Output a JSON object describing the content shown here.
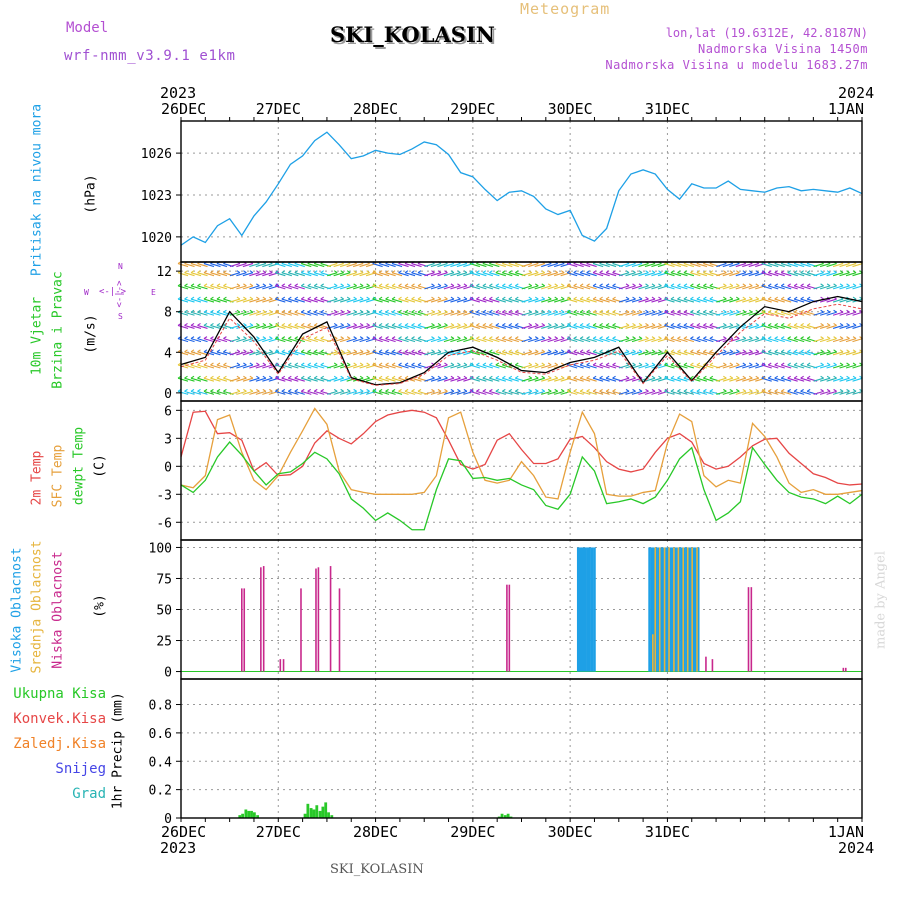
{
  "header": {
    "model_label": "Model",
    "model_value": "wrf-nmm_v3.9.1  e1km",
    "title": "SKI_KOLASIN",
    "meteogram_label": "Meteogram",
    "lonlat": "lon,lat (19.6312E, 42.8187N)",
    "elevation": "Nadmorska Visina 1450m",
    "model_elevation": "Nadmorska Visina u modelu 1683.27m",
    "year_left": "2023",
    "year_right": "2024",
    "footer_title": "SKI_KOLASIN",
    "credit": "made by Angel"
  },
  "colors": {
    "pressure": "#1ea0e6",
    "temp2m": "#e64646",
    "sfc": "#e6a03c",
    "dewpt": "#28c828",
    "high_cloud": "#1ea0e6",
    "mid_cloud": "#e6b43c",
    "low_cloud": "#c8288c",
    "rain": "#28c828",
    "conv": "#e64646",
    "freez": "#f08228",
    "snow": "#4646e6",
    "hail": "#28b4b4",
    "wind_axis": "#a028c8"
  },
  "chart_data": [
    {
      "type": "line",
      "panel": "pressure",
      "ylabel": "Pritisak na nivou mora",
      "unit": "(hPa)",
      "yticks": [
        "1020",
        "1023",
        "1026"
      ],
      "ylim": [
        1018.2,
        1028.3
      ],
      "x_hours": [
        0,
        3,
        6,
        9,
        12,
        15,
        18,
        21,
        24,
        27,
        30,
        33,
        36,
        39,
        42,
        45,
        48,
        51,
        54,
        57,
        60,
        63,
        66,
        69,
        72,
        75,
        78,
        81,
        84,
        87,
        90,
        93,
        96,
        99,
        102,
        105,
        108,
        111,
        114,
        117,
        120,
        123,
        126,
        129,
        132,
        135,
        138,
        141,
        144,
        147,
        150,
        153,
        156,
        159,
        162,
        165,
        168
      ],
      "values": [
        1019.4,
        1020.0,
        1019.6,
        1020.8,
        1021.3,
        1020.1,
        1021.5,
        1022.5,
        1023.8,
        1025.2,
        1025.8,
        1026.9,
        1027.5,
        1026.6,
        1025.6,
        1025.8,
        1026.2,
        1026.0,
        1025.9,
        1026.3,
        1026.8,
        1026.6,
        1025.9,
        1024.6,
        1024.3,
        1023.4,
        1022.6,
        1023.2,
        1023.3,
        1022.9,
        1022.0,
        1021.6,
        1021.9,
        1020.1,
        1019.7,
        1020.6,
        1023.3,
        1024.5,
        1024.8,
        1024.5,
        1023.4,
        1022.7,
        1023.8,
        1023.5,
        1023.5,
        1024.0,
        1023.4,
        1023.3,
        1023.2,
        1023.5,
        1023.6,
        1023.3,
        1023.4,
        1023.3,
        1023.2,
        1023.5,
        1023.1
      ]
    },
    {
      "type": "line",
      "panel": "wind",
      "ylabel_1": "10m Vjetar",
      "ylabel_2": "Brzina i Pravac",
      "unit": "(m/s)",
      "yticks": [
        "0",
        "4",
        "8",
        "12"
      ],
      "ylim": [
        -0.8,
        12.9
      ],
      "compass": {
        "n": "N",
        "s": "S",
        "w": "W",
        "e": "E",
        "lines": "<-|->"
      },
      "x_hours": [
        0,
        6,
        12,
        18,
        24,
        30,
        36,
        42,
        48,
        54,
        60,
        66,
        72,
        78,
        84,
        90,
        96,
        102,
        108,
        114,
        120,
        126,
        132,
        138,
        144,
        150,
        156,
        162,
        168
      ],
      "values": [
        2.8,
        3.5,
        8.0,
        5.5,
        2.0,
        5.8,
        7.0,
        1.5,
        0.8,
        1.0,
        2.0,
        4.0,
        4.5,
        3.5,
        2.2,
        2.0,
        3.0,
        3.5,
        4.5,
        1.0,
        4.0,
        1.2,
        4.0,
        6.5,
        8.5,
        8.0,
        9.0,
        9.5,
        9.0
      ]
    },
    {
      "type": "line",
      "panel": "temperature",
      "ylabel_1": "2m Temp",
      "ylabel_2": "SFC Temp",
      "ylabel_3": "dewpt Temp",
      "unit": "(C)",
      "yticks": [
        "-6",
        "-3",
        "0",
        "3",
        "6"
      ],
      "ylim": [
        -7.9,
        7.0
      ],
      "x_hours": [
        0,
        3,
        6,
        9,
        12,
        15,
        18,
        21,
        24,
        27,
        30,
        33,
        36,
        39,
        42,
        45,
        48,
        51,
        54,
        57,
        60,
        63,
        66,
        69,
        72,
        75,
        78,
        81,
        84,
        87,
        90,
        93,
        96,
        99,
        102,
        105,
        108,
        111,
        114,
        117,
        120,
        123,
        126,
        129,
        132,
        135,
        138,
        141,
        144,
        147,
        150,
        153,
        156,
        159,
        162,
        165,
        168
      ],
      "series": [
        {
          "name": "2m Temp",
          "values": [
            1.0,
            5.8,
            5.9,
            3.5,
            3.6,
            2.8,
            -0.5,
            0.4,
            -1.0,
            -0.9,
            0.0,
            2.5,
            3.8,
            3.0,
            2.4,
            3.5,
            4.8,
            5.5,
            5.8,
            6.0,
            5.8,
            5.2,
            2.8,
            0.2,
            -0.3,
            0.2,
            2.8,
            3.5,
            1.8,
            0.3,
            0.3,
            0.8,
            2.9,
            3.2,
            2.0,
            0.5,
            -0.3,
            -0.6,
            -0.3,
            1.5,
            3.0,
            3.5,
            2.6,
            0.3,
            -0.3,
            0.0,
            1.0,
            2.2,
            2.9,
            3.0,
            1.4,
            0.3,
            -0.8,
            -1.2,
            -1.8,
            -2.0,
            -1.9
          ]
        },
        {
          "name": "SFC Temp",
          "values": [
            -2.0,
            -2.3,
            -1.0,
            5.0,
            5.5,
            1.5,
            -1.5,
            -2.5,
            -1.0,
            1.5,
            3.8,
            6.2,
            4.5,
            -0.5,
            -2.5,
            -2.8,
            -3.0,
            -3.0,
            -3.0,
            -3.0,
            -2.8,
            -1.0,
            5.2,
            5.8,
            1.5,
            -1.5,
            -1.8,
            -1.5,
            0.5,
            -1.0,
            -3.3,
            -3.5,
            1.5,
            5.8,
            3.5,
            -3.0,
            -3.2,
            -3.2,
            -2.8,
            -2.6,
            2.5,
            5.6,
            4.8,
            -1.0,
            -2.2,
            -1.5,
            -1.8,
            4.6,
            3.2,
            1.0,
            -1.8,
            -2.8,
            -2.5,
            -3.0,
            -3.0,
            -2.8,
            -2.6
          ]
        },
        {
          "name": "dewpt Temp",
          "values": [
            -2.0,
            -2.8,
            -1.5,
            1.0,
            2.6,
            1.2,
            -0.5,
            -2.0,
            -0.8,
            -0.6,
            0.3,
            1.5,
            0.8,
            -0.8,
            -3.5,
            -4.5,
            -5.8,
            -5.0,
            -5.8,
            -6.8,
            -6.8,
            -2.5,
            0.8,
            0.6,
            -1.3,
            -1.2,
            -1.5,
            -1.3,
            -2.0,
            -2.5,
            -4.2,
            -4.6,
            -3.0,
            1.0,
            -0.5,
            -4.0,
            -3.8,
            -3.5,
            -4.0,
            -3.3,
            -1.5,
            0.8,
            2.0,
            -2.5,
            -5.8,
            -5.0,
            -3.8,
            2.0,
            0.2,
            -1.5,
            -2.8,
            -3.3,
            -3.5,
            -4.0,
            -3.2,
            -4.0,
            -3.0
          ]
        }
      ]
    },
    {
      "type": "bar",
      "panel": "cloud",
      "ylabel_1": "Visoka Oblacnost",
      "ylabel_2": "Srednja Oblacnost",
      "ylabel_3": "Niska Oblacnost",
      "unit": "(%)",
      "yticks": [
        "0",
        "25",
        "50",
        "75",
        "100"
      ],
      "ylim": [
        -6,
        106
      ],
      "series": [
        {
          "name": "Niska Oblacnost",
          "x_hours": [
            15.0,
            15.6,
            19.7,
            20.4,
            24.5,
            25.3,
            29.6,
            33.3,
            33.9,
            36.9,
            39.1,
            80.4,
            81.0,
            129.5,
            131.1,
            140.0,
            140.7,
            163.4,
            164.0
          ],
          "values": [
            67,
            67,
            84,
            85,
            10,
            10,
            67,
            83,
            84,
            85,
            67,
            70,
            70,
            12,
            10,
            68,
            68,
            3,
            3
          ]
        },
        {
          "name": "Visoka Oblacnost",
          "x_hours": [
            98.0,
            98.6,
            99.1,
            99.7,
            100.3,
            100.8,
            101.4,
            102.0,
            115.6,
            116.2,
            116.7,
            117.3,
            117.9,
            118.5,
            119.0,
            119.6,
            120.2,
            120.8,
            121.3,
            121.9,
            122.5,
            123.0,
            123.6,
            124.2,
            124.8,
            125.3,
            125.9,
            126.5,
            127.0,
            127.6
          ],
          "values": [
            100,
            100,
            100,
            100,
            100,
            100,
            100,
            100,
            100,
            100,
            100,
            100,
            100,
            100,
            100,
            100,
            100,
            100,
            100,
            100,
            100,
            100,
            100,
            100,
            100,
            100,
            100,
            100,
            100,
            100
          ]
        },
        {
          "name": "Srednja Oblacnost",
          "x_hours": [
            116.4,
            117.0,
            118.1,
            119.3,
            120.4,
            121.6,
            122.7,
            123.9,
            125.0,
            126.1,
            127.3
          ],
          "values": [
            30,
            100,
            100,
            100,
            100,
            100,
            100,
            100,
            100,
            100,
            100
          ]
        }
      ]
    },
    {
      "type": "bar",
      "panel": "precip",
      "ylabel": "1hr Precip",
      "unit": "(mm)",
      "yticks": [
        "0",
        "0.2",
        "0.4",
        "0.6",
        "0.8"
      ],
      "ylim": [
        0,
        0.98
      ],
      "legend": [
        "Ukupna Kisa",
        "Konvek.Kisa",
        "Zaledj.Kisa",
        "Snijeg",
        "Grad"
      ],
      "series": [
        {
          "name": "Ukupna Kisa",
          "x_hours": [
            14.5,
            15.2,
            16.0,
            16.7,
            17.4,
            18.1,
            18.9,
            30.6,
            31.3,
            32.1,
            32.8,
            33.5,
            34.3,
            35.0,
            35.7,
            36.4,
            37.2,
            78.5,
            79.2,
            80.0,
            80.7,
            81.4
          ],
          "values": [
            0.02,
            0.03,
            0.06,
            0.05,
            0.05,
            0.04,
            0.02,
            0.03,
            0.1,
            0.07,
            0.06,
            0.09,
            0.05,
            0.08,
            0.11,
            0.04,
            0.02,
            0.01,
            0.03,
            0.02,
            0.03,
            0.01
          ]
        }
      ]
    },
    {
      "type": "table",
      "panel": "time_axis",
      "x_ticks": [
        "26DEC",
        "27DEC",
        "28DEC",
        "29DEC",
        "30DEC",
        "31DEC",
        "1JAN"
      ],
      "x_tick_hours": [
        0,
        24,
        48,
        72,
        96,
        120,
        144,
        168
      ]
    }
  ]
}
